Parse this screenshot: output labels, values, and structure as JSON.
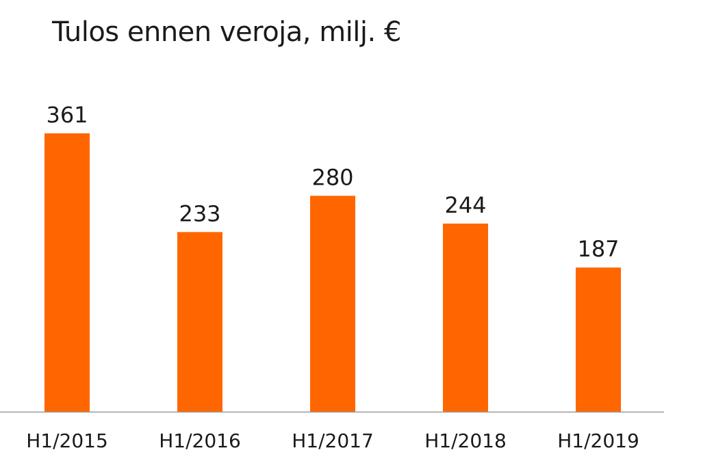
{
  "chart_data": {
    "type": "bar",
    "title": "Tulos ennen veroja, milj. €",
    "categories": [
      "H1/2015",
      "H1/2016",
      "H1/2017",
      "H1/2018",
      "H1/2019"
    ],
    "values": [
      361,
      233,
      280,
      244,
      187
    ],
    "data_labels": [
      "361",
      "233",
      "280",
      "244",
      "187"
    ],
    "xlabel": "",
    "ylabel": "",
    "ylim": [
      0,
      361
    ],
    "grid": false,
    "legend": "none",
    "bar_color": "#ff6600",
    "axis_color": "#999999"
  }
}
